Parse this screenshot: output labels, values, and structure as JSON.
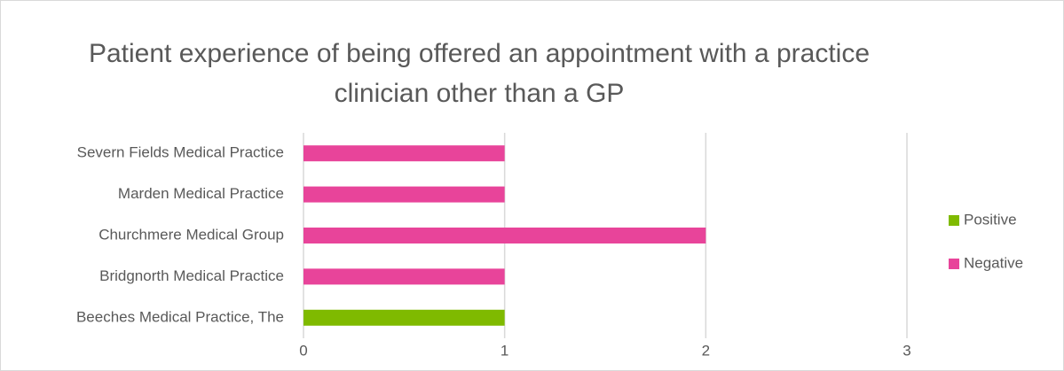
{
  "chart_data": {
    "type": "bar",
    "orientation": "horizontal",
    "stacked": true,
    "title": "Patient experience of being offered an appointment with a practice clinician other than a GP",
    "categories": [
      "Beeches Medical Practice, The",
      "Bridgnorth Medical Practice",
      "Churchmere Medical Group",
      "Marden Medical Practice",
      "Severn Fields Medical Practice"
    ],
    "series": [
      {
        "name": "Positive",
        "color": "#7fba00",
        "values": [
          1,
          0,
          0,
          0,
          0
        ]
      },
      {
        "name": "Negative",
        "color": "#e8449a",
        "values": [
          0,
          1,
          2,
          1,
          1
        ]
      }
    ],
    "xlim": [
      0,
      3
    ],
    "xticks": [
      0,
      1,
      2,
      3
    ],
    "grid": true,
    "legend": "right"
  }
}
